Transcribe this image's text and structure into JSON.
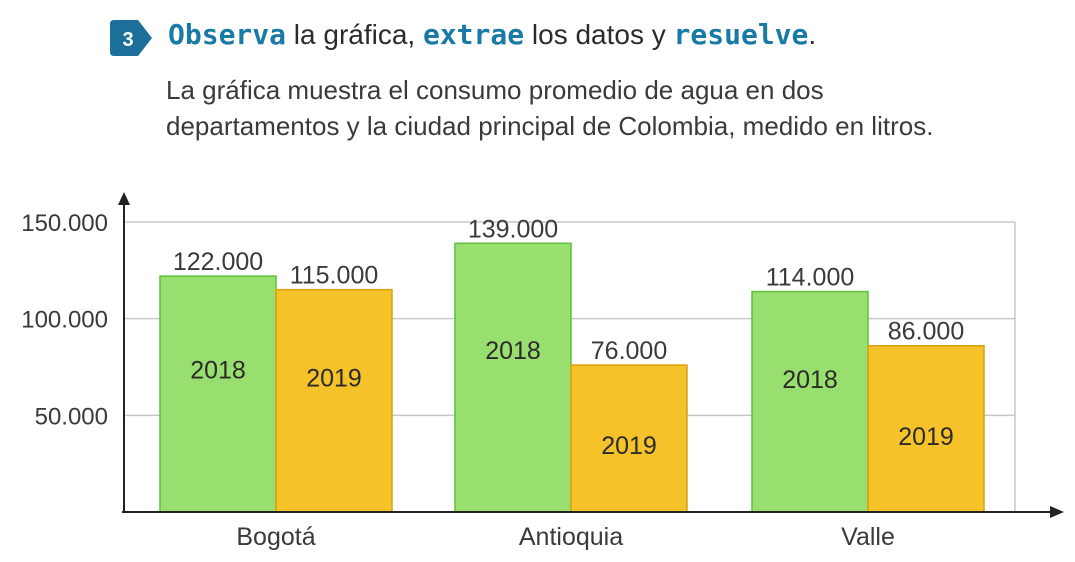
{
  "exercise": {
    "number": "3",
    "heading_parts": [
      {
        "text": "Observa",
        "kw": true
      },
      {
        "text": " la gráfica, ",
        "kw": false
      },
      {
        "text": "extrae",
        "kw": true
      },
      {
        "text": " los datos y ",
        "kw": false
      },
      {
        "text": "resuelve",
        "kw": true
      },
      {
        "text": ".",
        "kw": false
      }
    ],
    "description": "La gráfica muestra el consumo promedio de agua en dos departamentos y la ciudad principal de Colombia, medido en litros."
  },
  "colors": {
    "badge": "#1b6f98",
    "keyword": "#1a7aa6",
    "series_2018": "#98df70",
    "series_2019": "#f6c22a",
    "grid": "#c8c8c8",
    "axis": "#222222"
  },
  "chart_data": {
    "type": "bar",
    "categories": [
      "Bogotá",
      "Antioquia",
      "Valle"
    ],
    "series": [
      {
        "name": "2018",
        "values": [
          122000,
          139000,
          114000
        ],
        "labels": [
          "122.000",
          "139.000",
          "114.000"
        ]
      },
      {
        "name": "2019",
        "values": [
          115000,
          76000,
          86000
        ],
        "labels": [
          "115.000",
          "76.000",
          "86.000"
        ]
      }
    ],
    "yticks": [
      50000,
      100000,
      150000
    ],
    "ytick_labels": [
      "50.000",
      "100.000",
      "150.000"
    ],
    "ylim": [
      0,
      150000
    ],
    "grid": true,
    "legend": "none"
  }
}
